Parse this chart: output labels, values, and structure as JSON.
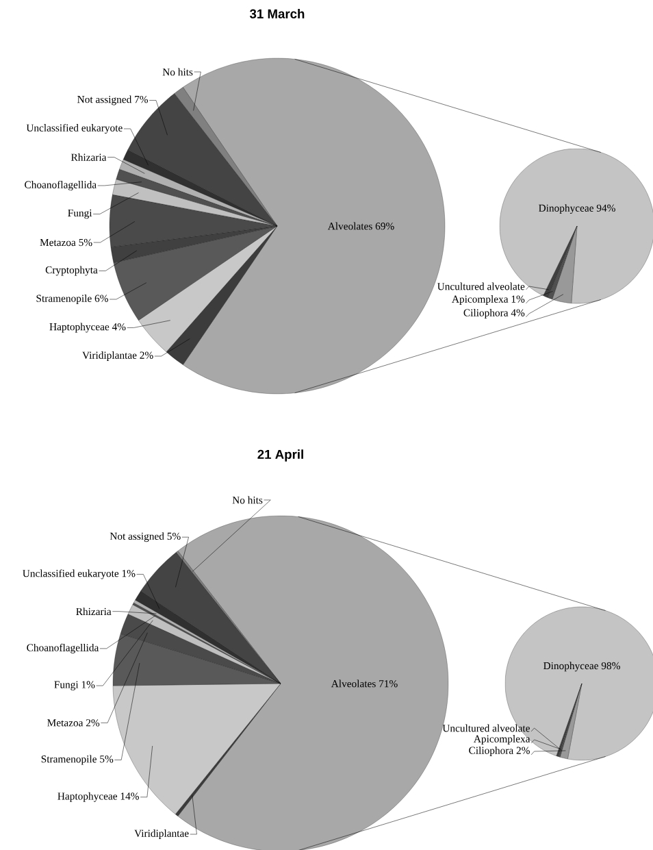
{
  "chart_data": [
    {
      "type": "pie",
      "title": "31 March",
      "categories": [
        "Alveolates",
        "Viridiplantae",
        "Haptophyceae",
        "Stramenopile",
        "Cryptophyta",
        "Metazoa",
        "Fungi",
        "Choanoflagellida",
        "Rhizaria",
        "Unclassified eukaryote",
        "Not assigned",
        "No hits"
      ],
      "values": [
        69,
        2,
        4,
        6,
        1.5,
        5,
        1.5,
        1,
        1,
        1,
        7,
        1
      ],
      "value_labels": [
        "69%",
        "2%",
        "4%",
        "6%",
        null,
        "5%",
        null,
        null,
        null,
        null,
        "7%",
        null
      ],
      "colors": [
        "#a8a8a8",
        "#3c3c3c",
        "#c8c8c8",
        "#595959",
        "#404040",
        "#4a4a4a",
        "#c0c0c0",
        "#505050",
        "#b0b0b0",
        "#303030",
        "#444444",
        "#808080"
      ]
    },
    {
      "type": "pie",
      "categories": [
        "Dinophyceae",
        "Uncultured alveolate",
        "Apicomplexa",
        "Ciliophora"
      ],
      "values": [
        94,
        1,
        1,
        4
      ],
      "value_labels": [
        "94%",
        null,
        "1%",
        "4%"
      ],
      "colors": [
        "#c4c4c4",
        "#404040",
        "#505050",
        "#999999"
      ]
    },
    {
      "type": "pie",
      "title": "21 April",
      "categories": [
        "Alveolates",
        "Viridiplantae",
        "Haptophyceae",
        "Stramenopile",
        "Metazoa",
        "Fungi",
        "Choanoflagellida",
        "Rhizaria",
        "Unclassified eukaryote",
        "Not assigned",
        "No hits"
      ],
      "values": [
        71,
        0.3,
        14,
        5,
        2,
        1,
        0.2,
        0.3,
        1,
        5,
        0.2
      ],
      "value_labels": [
        "71%",
        null,
        "14%",
        "5%",
        "2%",
        "1%",
        null,
        null,
        "1%",
        "5%",
        null
      ],
      "colors": [
        "#a8a8a8",
        "#3c3c3c",
        "#c8c8c8",
        "#595959",
        "#4a4a4a",
        "#c0c0c0",
        "#505050",
        "#b0b0b0",
        "#303030",
        "#444444",
        "#808080"
      ]
    },
    {
      "type": "pie",
      "categories": [
        "Dinophyceae",
        "Uncultured alveolate",
        "Apicomplexa",
        "Ciliophora"
      ],
      "values": [
        97.6,
        0.4,
        0.4,
        1.6
      ],
      "value_labels": [
        "98%",
        null,
        null,
        "2%"
      ],
      "colors": [
        "#c4c4c4",
        "#404040",
        "#505050",
        "#999999"
      ]
    }
  ]
}
